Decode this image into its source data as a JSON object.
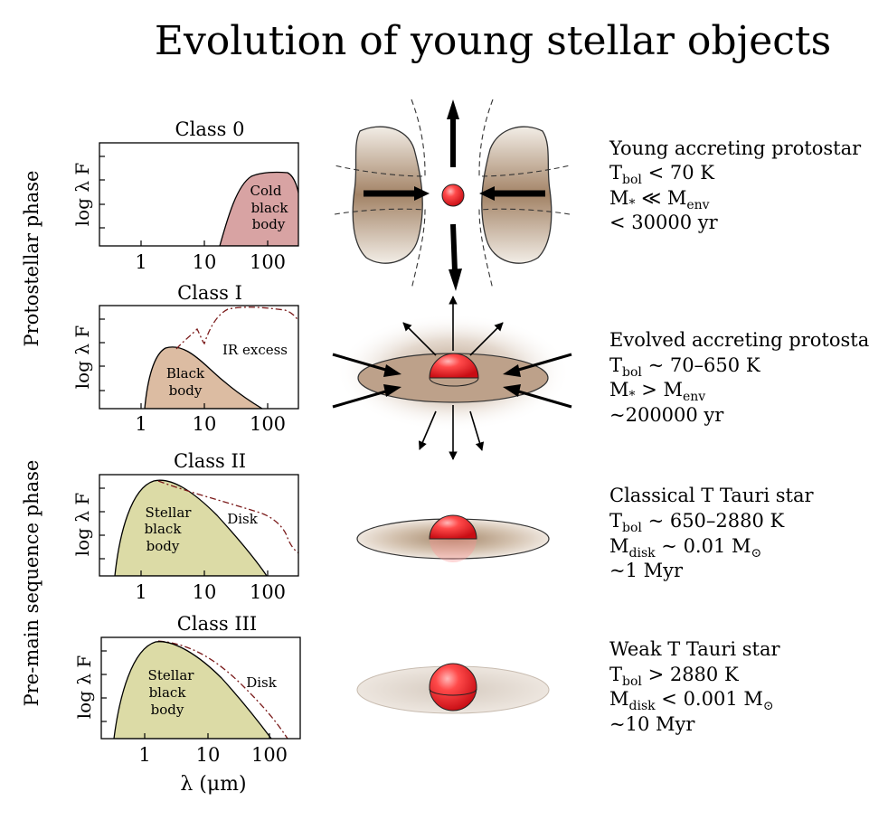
{
  "title": "Evolution of young stellar objects",
  "phases": {
    "protostellar": "Protostellar phase",
    "premain": "Pre-main sequence phase"
  },
  "axes": {
    "ylabel": "log λ F",
    "xlabel": "λ (μm)",
    "xticks": [
      "1",
      "10",
      "100"
    ]
  },
  "classes": [
    {
      "name": "Class 0",
      "labels": {
        "body": [
          "Cold",
          "black",
          "body"
        ]
      },
      "desc": {
        "line1": "Young accreting protostar",
        "line2": {
          "main": "T",
          "sub": "bol",
          "rest": " < 70 K"
        },
        "line3": {
          "a": "M",
          "a_sub": "*",
          "op": " ≪ M",
          "b_sub": "env"
        },
        "line4": "< 30000 yr"
      }
    },
    {
      "name": "Class I",
      "labels": {
        "body": [
          "Black",
          "body"
        ],
        "excess": "IR excess"
      },
      "desc": {
        "line1": "Evolved accreting protostar",
        "line2": {
          "main": "T",
          "sub": "bol",
          "rest": " ~ 70–650 K"
        },
        "line3": {
          "a": "M",
          "a_sub": "*",
          "op": " > M",
          "b_sub": "env"
        },
        "line4": "~200000 yr"
      }
    },
    {
      "name": "Class II",
      "labels": {
        "body": [
          "Stellar",
          "black",
          "body"
        ],
        "disk": "Disk"
      },
      "desc": {
        "line1": "Classical T Tauri star",
        "line2": {
          "main": "T",
          "sub": "bol",
          "rest": " ~ 650–2880 K"
        },
        "line3": {
          "a": "M",
          "a_sub": "disk",
          "op": " ~ 0.01 M",
          "b_sub": "⊙"
        },
        "line4": "~1 Myr"
      }
    },
    {
      "name": "Class III",
      "labels": {
        "body": [
          "Stellar",
          "black",
          "body"
        ],
        "disk": "Disk"
      },
      "desc": {
        "line1": "Weak T Tauri star",
        "line2": {
          "main": "T",
          "sub": "bol",
          "rest": " > 2880 K"
        },
        "line3": {
          "a": "M",
          "a_sub": "disk",
          "op": " < 0.001 M",
          "b_sub": "⊙"
        },
        "line4": "~10 Myr"
      }
    }
  ],
  "colors": {
    "class0_fill": "#d8a3a3",
    "class1_fill": "#dcbca2",
    "class23_fill": "#dcdba6",
    "ir_curve": "#7a1a1a",
    "envelope": "#a38366",
    "star": "#e6202a"
  }
}
